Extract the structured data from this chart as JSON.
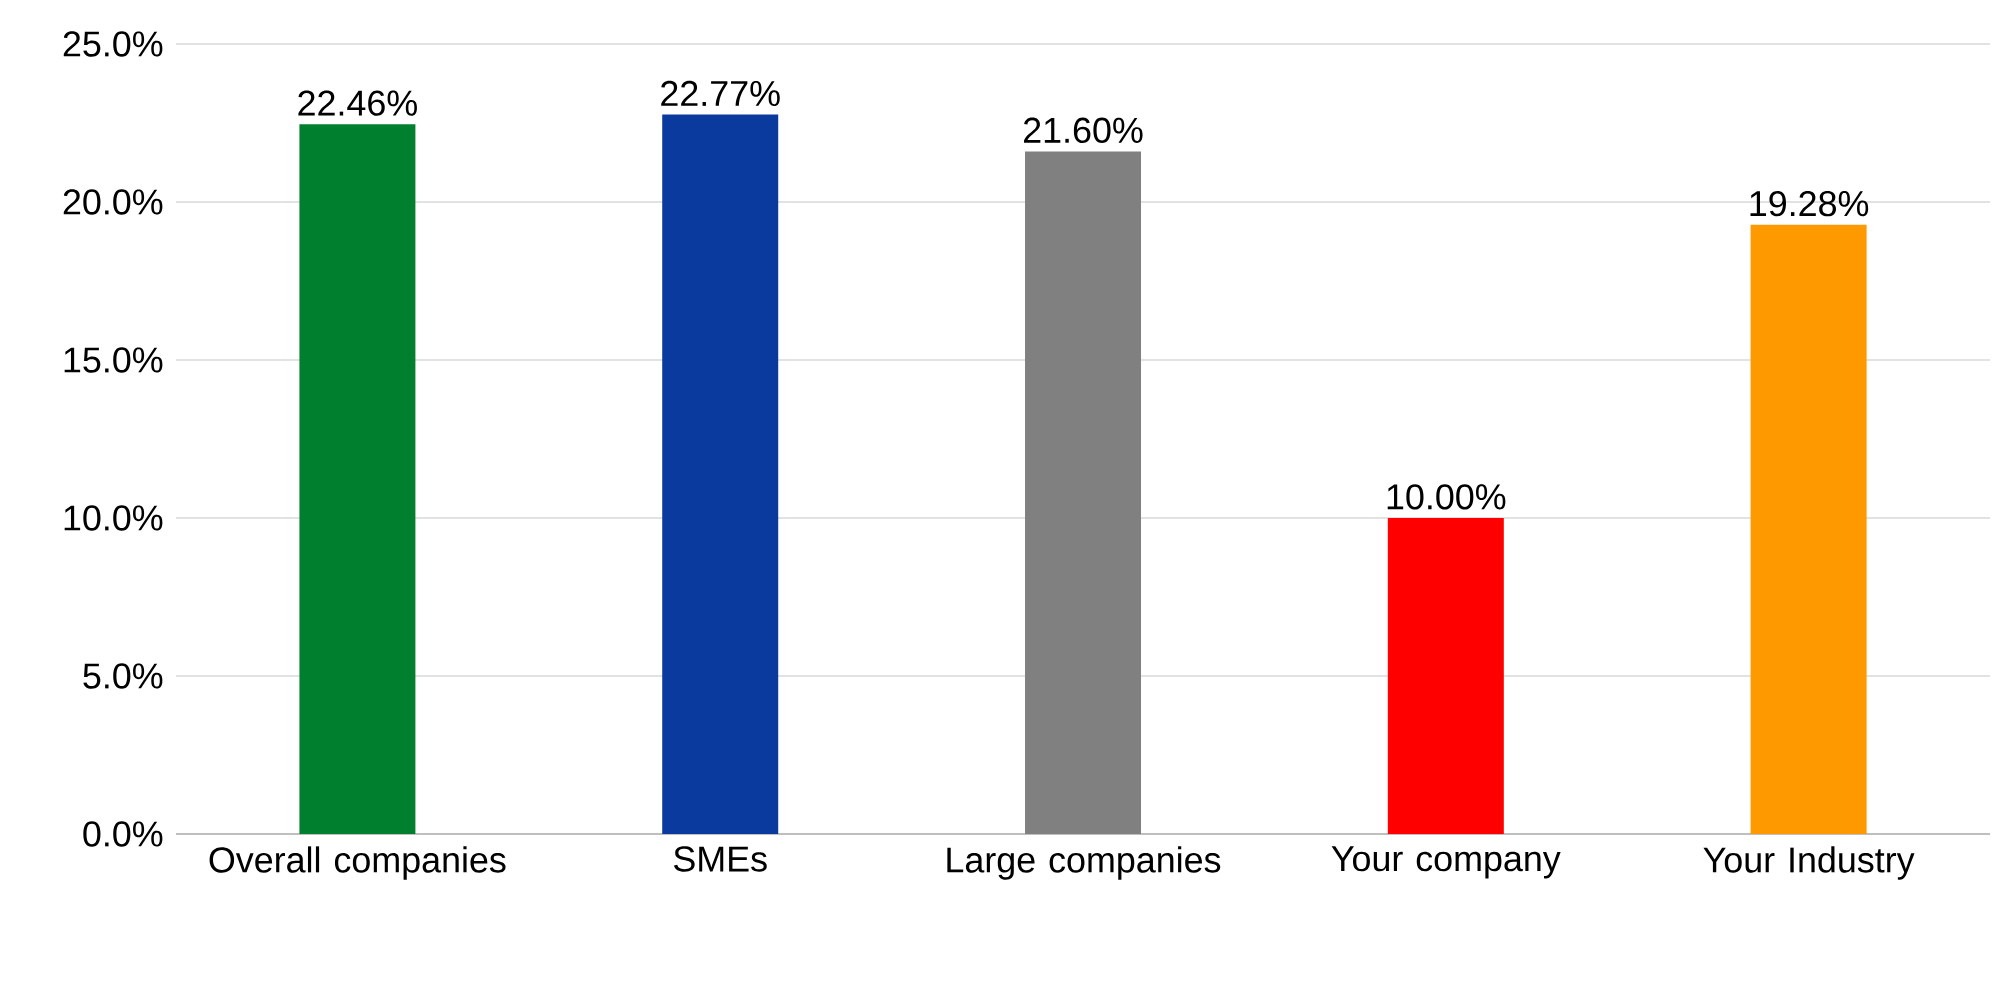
{
  "chart_data": {
    "type": "bar",
    "categories": [
      "Overall companies",
      "SMEs",
      "Large companies",
      "Your company",
      "Your Industry"
    ],
    "values": [
      22.46,
      22.77,
      21.6,
      10.0,
      19.28
    ],
    "colors": [
      "#00802f",
      "#0b3a9e",
      "#808080",
      "#ff0000",
      "#ff9900"
    ],
    "value_labels": [
      "22.46%",
      "22.77%",
      "21.60%",
      "10.00%",
      "19.28%"
    ],
    "ylim": [
      0,
      25
    ],
    "yticks": [
      {
        "value": 0,
        "label": "0.0%"
      },
      {
        "value": 5,
        "label": "5.0%"
      },
      {
        "value": 10,
        "label": "10.0%"
      },
      {
        "value": 15,
        "label": "15.0%"
      },
      {
        "value": 20,
        "label": "20.0%"
      },
      {
        "value": 25,
        "label": "25.0%"
      }
    ],
    "grid": "y"
  }
}
